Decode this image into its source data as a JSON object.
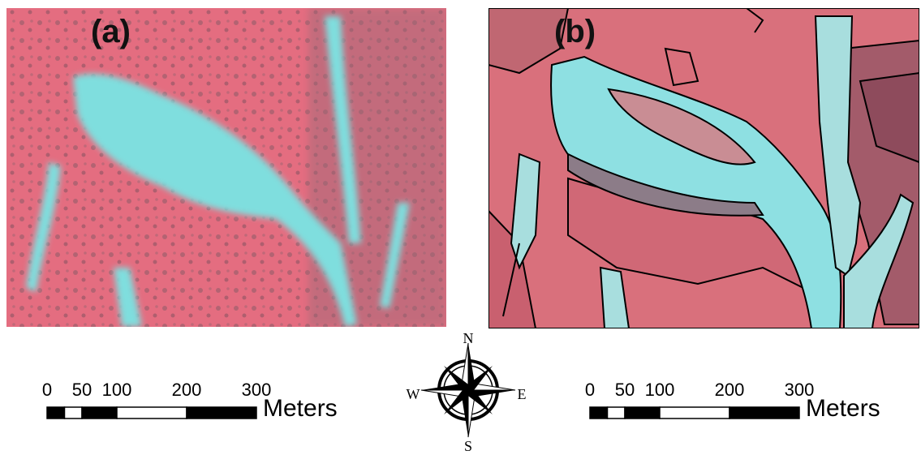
{
  "panels": [
    {
      "label": "(a)"
    },
    {
      "label": "(b)"
    }
  ],
  "scale_bars": [
    {
      "ticks": [
        0,
        50,
        100,
        200,
        300
      ],
      "unit": "Meters"
    },
    {
      "ticks": [
        0,
        50,
        100,
        200,
        300
      ],
      "unit": "Meters"
    }
  ],
  "compass": {
    "north": "N",
    "south": "S",
    "west": "W",
    "east": "E"
  }
}
